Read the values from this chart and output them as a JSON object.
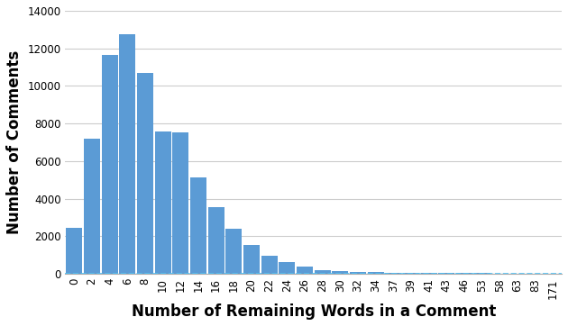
{
  "categories": [
    0,
    2,
    4,
    6,
    8,
    10,
    12,
    14,
    16,
    18,
    20,
    22,
    24,
    26,
    28,
    30,
    32,
    34,
    37,
    39,
    41,
    43,
    46,
    53,
    58,
    63,
    83,
    171
  ],
  "tick_labels": [
    "0",
    "2",
    "4",
    "6",
    "8",
    "10",
    "12",
    "14",
    "16",
    "18",
    "20",
    "22",
    "24",
    "26",
    "28",
    "30",
    "32",
    "34",
    "37",
    "39",
    "41",
    "43",
    "46",
    "53",
    "58",
    "63",
    "83",
    "171"
  ],
  "values": [
    2450,
    7200,
    11650,
    12750,
    10700,
    7600,
    7550,
    5150,
    3550,
    2400,
    1550,
    950,
    650,
    400,
    200,
    150,
    100,
    80,
    70,
    60,
    50,
    45,
    40,
    35,
    25,
    20,
    18,
    15
  ],
  "bar_color": "#5B9BD5",
  "dashed_line_color": "#4FC3F7",
  "dashed_line_y": 30,
  "xlabel": "Number of Remaining Words in a Comment",
  "ylabel": "Number of Comments",
  "ylim": [
    0,
    14000
  ],
  "yticks": [
    0,
    2000,
    4000,
    6000,
    8000,
    10000,
    12000,
    14000
  ],
  "background_color": "#FFFFFF",
  "grid_color": "#CCCCCC",
  "xlabel_fontsize": 12,
  "ylabel_fontsize": 12,
  "tick_fontsize": 8.5
}
